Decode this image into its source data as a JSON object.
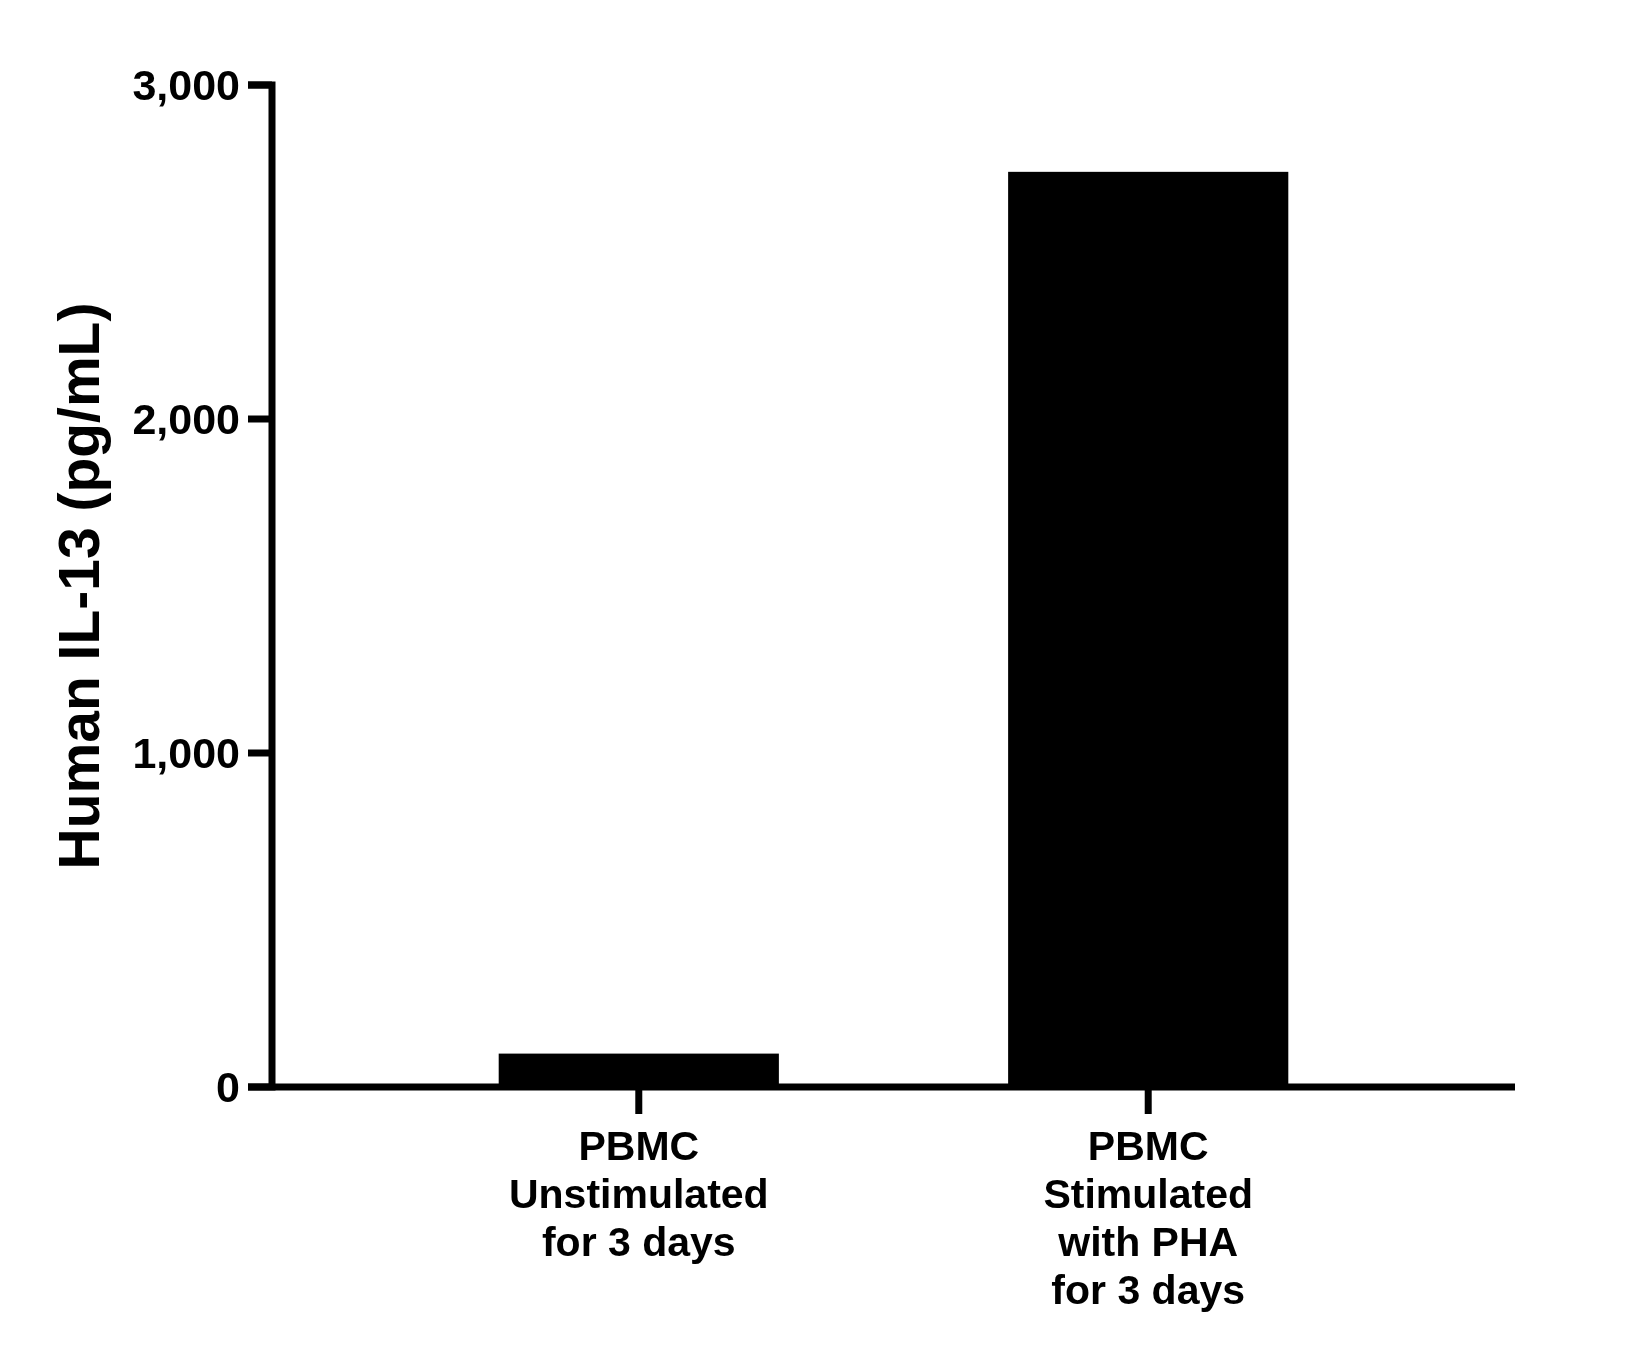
{
  "chart_data": {
    "type": "bar",
    "ylabel": "Human IL-13 (pg/mL)",
    "categories": [
      "PBMC\nUnstimulated\nfor 3 days",
      "PBMC\nStimulated\nwith PHA\nfor 3 days"
    ],
    "values": [
      100,
      2740
    ],
    "color": "#000000",
    "ylim": [
      0,
      3000
    ],
    "yticks": [
      0,
      {
        "value": 1000,
        "label": "1,000"
      },
      {
        "value": 2000,
        "label": "2,000"
      },
      {
        "value": 3000,
        "label": "3,000"
      }
    ],
    "grid": false,
    "legend": false
  }
}
